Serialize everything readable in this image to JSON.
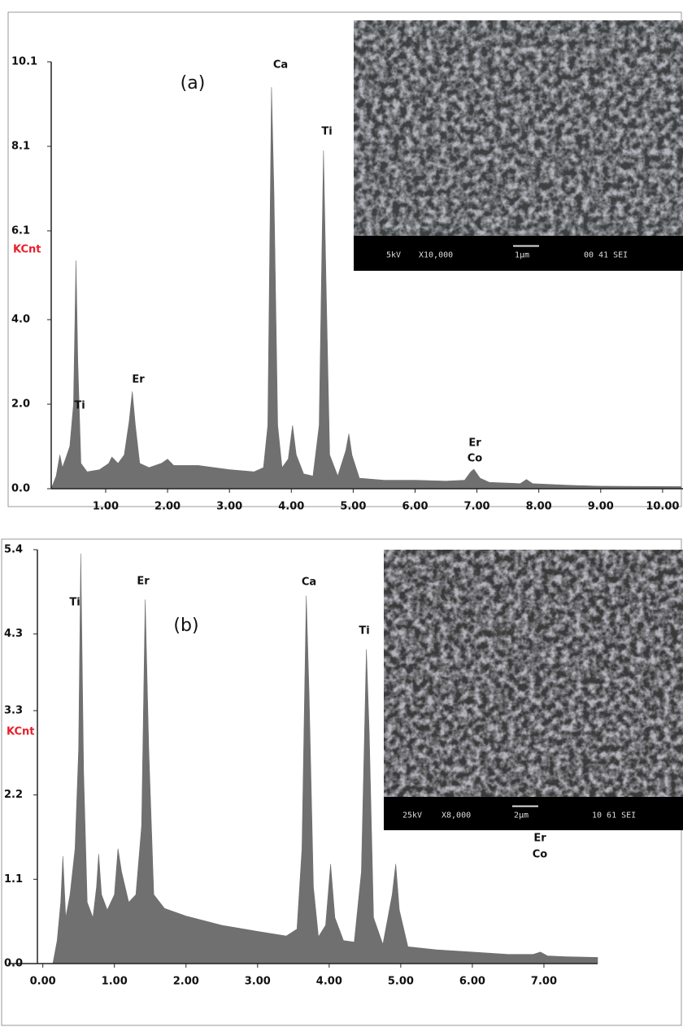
{
  "chart_data": [
    {
      "type": "area",
      "panel_label": "(a)",
      "ylabel": "KCnt",
      "color": "#707070",
      "ylabel_color": "#e8202a",
      "x": [
        0.12,
        0.2,
        0.26,
        0.3,
        0.35,
        0.42,
        0.48,
        0.52,
        0.55,
        0.6,
        0.7,
        0.9,
        1.05,
        1.1,
        1.2,
        1.3,
        1.38,
        1.43,
        1.48,
        1.55,
        1.7,
        1.9,
        2.0,
        2.1,
        2.5,
        3.0,
        3.4,
        3.55,
        3.62,
        3.68,
        3.72,
        3.78,
        3.85,
        3.95,
        4.02,
        4.08,
        4.2,
        4.35,
        4.45,
        4.52,
        4.56,
        4.62,
        4.75,
        4.88,
        4.93,
        4.98,
        5.1,
        5.5,
        6.0,
        6.5,
        6.8,
        6.9,
        6.95,
        7.05,
        7.2,
        7.7,
        7.8,
        7.9,
        8.5,
        9.0,
        10.3
      ],
      "values": [
        0,
        0.3,
        0.8,
        0.5,
        0.7,
        1.0,
        2.0,
        5.4,
        3.0,
        0.6,
        0.4,
        0.45,
        0.6,
        0.75,
        0.6,
        0.8,
        1.6,
        2.3,
        1.5,
        0.6,
        0.5,
        0.6,
        0.7,
        0.55,
        0.55,
        0.45,
        0.4,
        0.5,
        1.5,
        9.5,
        7.0,
        1.5,
        0.5,
        0.7,
        1.5,
        0.8,
        0.35,
        0.3,
        1.5,
        8.0,
        5.0,
        0.8,
        0.3,
        0.9,
        1.3,
        0.8,
        0.25,
        0.2,
        0.2,
        0.18,
        0.2,
        0.4,
        0.46,
        0.25,
        0.15,
        0.12,
        0.22,
        0.12,
        0.08,
        0.06,
        0.05
      ],
      "xlim": [
        0.12,
        10.33
      ],
      "ylim": [
        0,
        10.1
      ],
      "xticks": [
        {
          "value": 1,
          "label": "1.00"
        },
        {
          "value": 2,
          "label": "2.00"
        },
        {
          "value": 3,
          "label": "3.00"
        },
        {
          "value": 4,
          "label": "4.00"
        },
        {
          "value": 5,
          "label": "5.00"
        },
        {
          "value": 6,
          "label": "6.00"
        },
        {
          "value": 7,
          "label": "7.00"
        },
        {
          "value": 8,
          "label": "8.00"
        },
        {
          "value": 9,
          "label": "9.00"
        },
        {
          "value": 10,
          "label": "10.00"
        }
      ],
      "yticks": [
        {
          "value": 0,
          "label": "0.0"
        },
        {
          "value": 2,
          "label": "2.0"
        },
        {
          "value": 4,
          "label": "4.0"
        },
        6.1,
        8.1,
        10.1
      ],
      "annotations": [
        "Ti",
        "Er",
        "Ca",
        "Ti",
        "Er",
        "Co"
      ],
      "inset_labels": [
        "5kV",
        "X10,000",
        "1μm",
        "00 41 SEI"
      ]
    },
    {
      "type": "area",
      "panel_label": "(b)",
      "ylabel": "KCnt",
      "color": "#707070",
      "ylabel_color": "#e8202a",
      "x": [
        0.14,
        0.2,
        0.25,
        0.28,
        0.32,
        0.38,
        0.45,
        0.5,
        0.53,
        0.57,
        0.62,
        0.7,
        0.75,
        0.78,
        0.82,
        0.9,
        1.0,
        1.05,
        1.1,
        1.2,
        1.3,
        1.38,
        1.43,
        1.48,
        1.55,
        1.7,
        2.0,
        2.5,
        3.0,
        3.4,
        3.55,
        3.62,
        3.68,
        3.72,
        3.78,
        3.85,
        3.95,
        4.02,
        4.08,
        4.2,
        4.35,
        4.45,
        4.52,
        4.56,
        4.62,
        4.75,
        4.88,
        4.93,
        4.98,
        5.1,
        5.5,
        6.0,
        6.5,
        6.85,
        6.95,
        7.05,
        7.3,
        7.75
      ],
      "values": [
        0,
        0.3,
        0.8,
        1.4,
        0.6,
        0.9,
        1.5,
        2.8,
        5.35,
        2.5,
        0.8,
        0.6,
        1.0,
        1.43,
        0.9,
        0.7,
        0.9,
        1.5,
        1.2,
        0.8,
        0.9,
        1.8,
        4.75,
        2.8,
        0.9,
        0.72,
        0.62,
        0.5,
        0.42,
        0.36,
        0.45,
        1.5,
        4.8,
        3.5,
        1.0,
        0.35,
        0.5,
        1.3,
        0.6,
        0.3,
        0.28,
        1.2,
        4.1,
        3.0,
        0.6,
        0.25,
        0.9,
        1.3,
        0.7,
        0.22,
        0.18,
        0.15,
        0.12,
        0.12,
        0.15,
        0.1,
        0.09,
        0.08
      ],
      "xlim": [
        0.14,
        7.75
      ],
      "ylim": [
        0,
        5.4
      ],
      "xticks": [
        {
          "value": 0,
          "label": "0.00"
        },
        {
          "value": 1,
          "label": "1.00"
        },
        {
          "value": 2,
          "label": "2.00"
        },
        {
          "value": 3,
          "label": "3.00"
        },
        {
          "value": 4,
          "label": "4.00"
        },
        {
          "value": 5,
          "label": "5.00"
        },
        {
          "value": 6,
          "label": "6.00"
        },
        {
          "value": 7,
          "label": "7.00"
        }
      ],
      "yticks": [
        {
          "value": 0,
          "label": "0.0"
        },
        1.1,
        2.2,
        3.3,
        4.3,
        5.4
      ],
      "annotations": [
        "Ti",
        "Er",
        "Ca",
        "Ti",
        "Er",
        "Co"
      ],
      "inset_labels": [
        "25kV",
        "X8,000",
        "2μm",
        "10 61 SEI"
      ]
    }
  ]
}
